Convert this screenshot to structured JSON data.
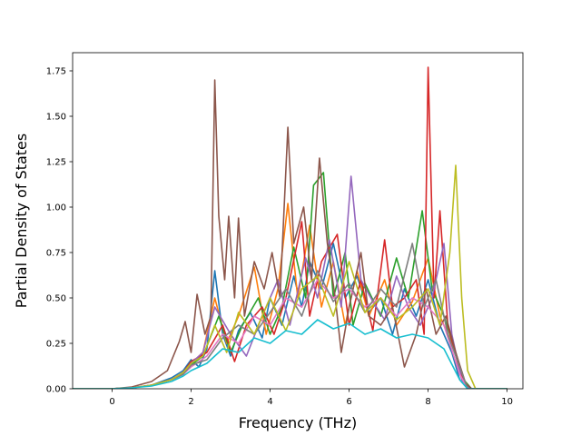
{
  "chart_data": {
    "type": "line",
    "title": "",
    "xlabel": "Frequency (THz)",
    "ylabel": "Partial Density of States",
    "xlim": [
      -1.0,
      10.4
    ],
    "ylim": [
      0.0,
      1.85
    ],
    "xticks": [
      0,
      2,
      4,
      6,
      8,
      10
    ],
    "xtick_labels": [
      "0",
      "2",
      "4",
      "6",
      "8",
      "10"
    ],
    "yticks": [
      0.0,
      0.25,
      0.5,
      0.75,
      1.0,
      1.25,
      1.5,
      1.75
    ],
    "ytick_labels": [
      "0.00",
      "0.25",
      "0.50",
      "0.75",
      "1.00",
      "1.25",
      "1.50",
      "1.75"
    ],
    "grid": false,
    "legend": "none",
    "series": [
      {
        "color": "#1f77b4",
        "points": [
          [
            -1,
            0
          ],
          [
            0,
            0
          ],
          [
            0.5,
            0.005
          ],
          [
            1,
            0.02
          ],
          [
            1.5,
            0.06
          ],
          [
            1.8,
            0.1
          ],
          [
            2,
            0.16
          ],
          [
            2.2,
            0.12
          ],
          [
            2.4,
            0.22
          ],
          [
            2.6,
            0.65
          ],
          [
            2.8,
            0.3
          ],
          [
            3,
            0.18
          ],
          [
            3.2,
            0.32
          ],
          [
            3.5,
            0.42
          ],
          [
            3.8,
            0.28
          ],
          [
            4,
            0.5
          ],
          [
            4.3,
            0.35
          ],
          [
            4.6,
            0.62
          ],
          [
            4.8,
            0.45
          ],
          [
            5,
            0.7
          ],
          [
            5.3,
            0.55
          ],
          [
            5.6,
            0.8
          ],
          [
            5.9,
            0.5
          ],
          [
            6.2,
            0.62
          ],
          [
            6.5,
            0.42
          ],
          [
            6.8,
            0.5
          ],
          [
            7.1,
            0.3
          ],
          [
            7.4,
            0.55
          ],
          [
            7.7,
            0.4
          ],
          [
            8,
            0.6
          ],
          [
            8.3,
            0.35
          ],
          [
            8.6,
            0.2
          ],
          [
            8.8,
            0.05
          ],
          [
            9,
            0
          ],
          [
            10,
            0
          ]
        ]
      },
      {
        "color": "#ff7f0e",
        "points": [
          [
            -1,
            0
          ],
          [
            0,
            0
          ],
          [
            0.5,
            0.005
          ],
          [
            1,
            0.02
          ],
          [
            1.5,
            0.05
          ],
          [
            1.8,
            0.09
          ],
          [
            2,
            0.14
          ],
          [
            2.3,
            0.2
          ],
          [
            2.6,
            0.5
          ],
          [
            2.9,
            0.25
          ],
          [
            3.2,
            0.4
          ],
          [
            3.6,
            0.67
          ],
          [
            3.9,
            0.3
          ],
          [
            4.2,
            0.55
          ],
          [
            4.45,
            1.02
          ],
          [
            4.7,
            0.5
          ],
          [
            5,
            0.9
          ],
          [
            5.3,
            0.45
          ],
          [
            5.6,
            0.7
          ],
          [
            5.9,
            0.35
          ],
          [
            6.2,
            0.65
          ],
          [
            6.5,
            0.4
          ],
          [
            6.9,
            0.6
          ],
          [
            7.2,
            0.35
          ],
          [
            7.6,
            0.48
          ],
          [
            8,
            0.72
          ],
          [
            8.3,
            0.4
          ],
          [
            8.6,
            0.25
          ],
          [
            8.9,
            0.05
          ],
          [
            9.1,
            0
          ],
          [
            10,
            0
          ]
        ]
      },
      {
        "color": "#2ca02c",
        "points": [
          [
            -1,
            0
          ],
          [
            0,
            0
          ],
          [
            0.5,
            0.005
          ],
          [
            1,
            0.02
          ],
          [
            1.5,
            0.05
          ],
          [
            1.8,
            0.08
          ],
          [
            2,
            0.13
          ],
          [
            2.3,
            0.18
          ],
          [
            2.7,
            0.4
          ],
          [
            3,
            0.2
          ],
          [
            3.3,
            0.35
          ],
          [
            3.7,
            0.5
          ],
          [
            4,
            0.3
          ],
          [
            4.3,
            0.45
          ],
          [
            4.6,
            0.78
          ],
          [
            4.9,
            0.5
          ],
          [
            5.1,
            1.12
          ],
          [
            5.35,
            1.19
          ],
          [
            5.6,
            0.5
          ],
          [
            5.9,
            0.75
          ],
          [
            6.1,
            0.35
          ],
          [
            6.4,
            0.58
          ],
          [
            6.8,
            0.4
          ],
          [
            7.2,
            0.72
          ],
          [
            7.5,
            0.5
          ],
          [
            7.85,
            0.98
          ],
          [
            8.1,
            0.55
          ],
          [
            8.4,
            0.4
          ],
          [
            8.7,
            0.2
          ],
          [
            8.9,
            0.05
          ],
          [
            9.1,
            0
          ],
          [
            10,
            0
          ]
        ]
      },
      {
        "color": "#d62728",
        "points": [
          [
            -1,
            0
          ],
          [
            0,
            0
          ],
          [
            0.5,
            0.005
          ],
          [
            1,
            0.02
          ],
          [
            1.5,
            0.05
          ],
          [
            1.8,
            0.09
          ],
          [
            2,
            0.15
          ],
          [
            2.4,
            0.2
          ],
          [
            2.8,
            0.35
          ],
          [
            3.1,
            0.15
          ],
          [
            3.4,
            0.35
          ],
          [
            3.8,
            0.45
          ],
          [
            4.1,
            0.3
          ],
          [
            4.4,
            0.5
          ],
          [
            4.8,
            0.92
          ],
          [
            5,
            0.4
          ],
          [
            5.3,
            0.7
          ],
          [
            5.7,
            0.85
          ],
          [
            6,
            0.35
          ],
          [
            6.3,
            0.6
          ],
          [
            6.6,
            0.32
          ],
          [
            6.9,
            0.82
          ],
          [
            7.1,
            0.45
          ],
          [
            7.4,
            0.5
          ],
          [
            7.7,
            0.6
          ],
          [
            7.9,
            0.3
          ],
          [
            8.0,
            1.77
          ],
          [
            8.15,
            0.5
          ],
          [
            8.3,
            0.98
          ],
          [
            8.5,
            0.35
          ],
          [
            8.8,
            0.1
          ],
          [
            9,
            0
          ],
          [
            10,
            0
          ]
        ]
      },
      {
        "color": "#9467bd",
        "points": [
          [
            -1,
            0
          ],
          [
            0,
            0
          ],
          [
            0.5,
            0.005
          ],
          [
            1,
            0.02
          ],
          [
            1.5,
            0.05
          ],
          [
            1.8,
            0.09
          ],
          [
            2,
            0.14
          ],
          [
            2.3,
            0.2
          ],
          [
            2.6,
            0.45
          ],
          [
            3,
            0.3
          ],
          [
            3.4,
            0.18
          ],
          [
            3.8,
            0.4
          ],
          [
            4.2,
            0.6
          ],
          [
            4.5,
            0.35
          ],
          [
            4.9,
            0.72
          ],
          [
            5.2,
            0.5
          ],
          [
            5.5,
            0.82
          ],
          [
            5.8,
            0.45
          ],
          [
            6.05,
            1.17
          ],
          [
            6.3,
            0.6
          ],
          [
            6.6,
            0.48
          ],
          [
            6.9,
            0.38
          ],
          [
            7.2,
            0.62
          ],
          [
            7.5,
            0.45
          ],
          [
            7.8,
            0.35
          ],
          [
            8.1,
            0.5
          ],
          [
            8.4,
            0.8
          ],
          [
            8.6,
            0.3
          ],
          [
            8.85,
            0.05
          ],
          [
            9.05,
            0
          ],
          [
            10,
            0
          ]
        ]
      },
      {
        "color": "#8c564b",
        "points": [
          [
            -1,
            0
          ],
          [
            0,
            0
          ],
          [
            0.5,
            0.01
          ],
          [
            1,
            0.04
          ],
          [
            1.4,
            0.1
          ],
          [
            1.7,
            0.26
          ],
          [
            1.85,
            0.37
          ],
          [
            2,
            0.2
          ],
          [
            2.15,
            0.52
          ],
          [
            2.35,
            0.3
          ],
          [
            2.5,
            0.4
          ],
          [
            2.6,
            1.7
          ],
          [
            2.7,
            0.95
          ],
          [
            2.85,
            0.6
          ],
          [
            2.95,
            0.95
          ],
          [
            3.1,
            0.5
          ],
          [
            3.2,
            0.94
          ],
          [
            3.35,
            0.4
          ],
          [
            3.6,
            0.7
          ],
          [
            3.85,
            0.55
          ],
          [
            4.05,
            0.75
          ],
          [
            4.25,
            0.5
          ],
          [
            4.45,
            1.44
          ],
          [
            4.6,
            0.8
          ],
          [
            4.85,
            1.0
          ],
          [
            5.05,
            0.6
          ],
          [
            5.25,
            1.27
          ],
          [
            5.45,
            0.8
          ],
          [
            5.65,
            0.5
          ],
          [
            5.8,
            0.2
          ],
          [
            6,
            0.45
          ],
          [
            6.3,
            0.75
          ],
          [
            6.5,
            0.4
          ],
          [
            6.8,
            0.35
          ],
          [
            7.1,
            0.45
          ],
          [
            7.4,
            0.12
          ],
          [
            7.7,
            0.3
          ],
          [
            7.95,
            0.55
          ],
          [
            8.2,
            0.3
          ],
          [
            8.45,
            0.4
          ],
          [
            8.7,
            0.2
          ],
          [
            8.95,
            0.03
          ],
          [
            9.1,
            0
          ],
          [
            10,
            0
          ]
        ]
      },
      {
        "color": "#e377c2",
        "points": [
          [
            -1,
            0
          ],
          [
            0,
            0
          ],
          [
            0.5,
            0.005
          ],
          [
            1,
            0.02
          ],
          [
            1.5,
            0.05
          ],
          [
            1.8,
            0.08
          ],
          [
            2,
            0.12
          ],
          [
            2.4,
            0.18
          ],
          [
            2.8,
            0.3
          ],
          [
            3.2,
            0.25
          ],
          [
            3.6,
            0.4
          ],
          [
            4,
            0.35
          ],
          [
            4.4,
            0.5
          ],
          [
            4.8,
            0.45
          ],
          [
            5.2,
            0.6
          ],
          [
            5.6,
            0.5
          ],
          [
            6,
            0.55
          ],
          [
            6.4,
            0.45
          ],
          [
            6.8,
            0.5
          ],
          [
            7.2,
            0.4
          ],
          [
            7.6,
            0.5
          ],
          [
            8,
            0.45
          ],
          [
            8.4,
            0.35
          ],
          [
            8.8,
            0.08
          ],
          [
            9,
            0
          ],
          [
            10,
            0
          ]
        ]
      },
      {
        "color": "#7f7f7f",
        "points": [
          [
            -1,
            0
          ],
          [
            0,
            0
          ],
          [
            0.5,
            0.005
          ],
          [
            1,
            0.02
          ],
          [
            1.5,
            0.05
          ],
          [
            1.8,
            0.08
          ],
          [
            2,
            0.13
          ],
          [
            2.4,
            0.16
          ],
          [
            2.8,
            0.28
          ],
          [
            3.2,
            0.35
          ],
          [
            3.6,
            0.3
          ],
          [
            4,
            0.42
          ],
          [
            4.4,
            0.55
          ],
          [
            4.8,
            0.4
          ],
          [
            5.2,
            0.65
          ],
          [
            5.6,
            0.48
          ],
          [
            6,
            0.58
          ],
          [
            6.4,
            0.42
          ],
          [
            6.8,
            0.55
          ],
          [
            7.2,
            0.45
          ],
          [
            7.6,
            0.8
          ],
          [
            7.9,
            0.45
          ],
          [
            8.2,
            0.6
          ],
          [
            8.5,
            0.3
          ],
          [
            8.8,
            0.12
          ],
          [
            9,
            0
          ],
          [
            10,
            0
          ]
        ]
      },
      {
        "color": "#bcbd22",
        "points": [
          [
            -1,
            0
          ],
          [
            0,
            0
          ],
          [
            0.5,
            0.005
          ],
          [
            1,
            0.02
          ],
          [
            1.5,
            0.05
          ],
          [
            1.8,
            0.09
          ],
          [
            2,
            0.14
          ],
          [
            2.3,
            0.18
          ],
          [
            2.6,
            0.35
          ],
          [
            2.9,
            0.2
          ],
          [
            3.2,
            0.42
          ],
          [
            3.6,
            0.3
          ],
          [
            4,
            0.5
          ],
          [
            4.4,
            0.32
          ],
          [
            4.8,
            0.55
          ],
          [
            5.2,
            0.62
          ],
          [
            5.6,
            0.4
          ],
          [
            6,
            0.7
          ],
          [
            6.4,
            0.42
          ],
          [
            6.8,
            0.5
          ],
          [
            7.2,
            0.38
          ],
          [
            7.6,
            0.45
          ],
          [
            8,
            0.55
          ],
          [
            8.3,
            0.35
          ],
          [
            8.55,
            0.75
          ],
          [
            8.7,
            1.23
          ],
          [
            8.85,
            0.5
          ],
          [
            9,
            0.1
          ],
          [
            9.2,
            0
          ],
          [
            10,
            0
          ]
        ]
      },
      {
        "color": "#17becf",
        "points": [
          [
            -1,
            0
          ],
          [
            0,
            0
          ],
          [
            0.5,
            0.005
          ],
          [
            1,
            0.015
          ],
          [
            1.5,
            0.04
          ],
          [
            1.8,
            0.07
          ],
          [
            2,
            0.1
          ],
          [
            2.4,
            0.14
          ],
          [
            2.8,
            0.22
          ],
          [
            3.2,
            0.2
          ],
          [
            3.6,
            0.28
          ],
          [
            4,
            0.25
          ],
          [
            4.4,
            0.32
          ],
          [
            4.8,
            0.3
          ],
          [
            5.2,
            0.38
          ],
          [
            5.6,
            0.33
          ],
          [
            6,
            0.36
          ],
          [
            6.4,
            0.3
          ],
          [
            6.8,
            0.33
          ],
          [
            7.2,
            0.28
          ],
          [
            7.6,
            0.3
          ],
          [
            8,
            0.28
          ],
          [
            8.4,
            0.22
          ],
          [
            8.8,
            0.05
          ],
          [
            9,
            0
          ],
          [
            10,
            0
          ]
        ]
      }
    ]
  }
}
